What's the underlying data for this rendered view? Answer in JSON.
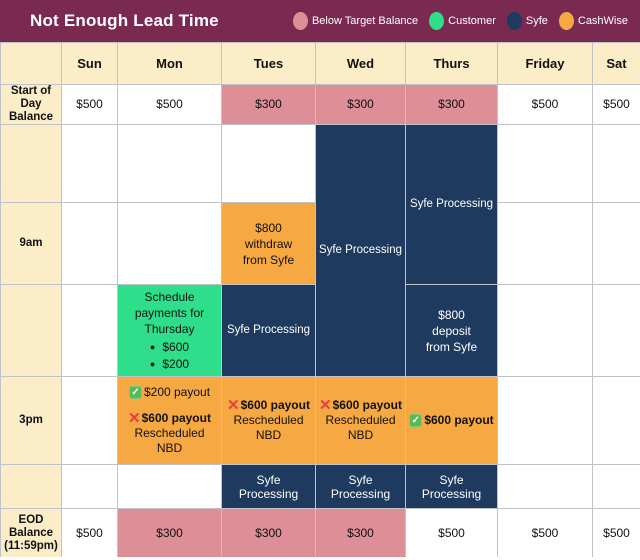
{
  "title": "Not Enough Lead Time",
  "legend": [
    {
      "name": "below-target-balance",
      "label": "Below Target Balance",
      "color": "#DD8E96"
    },
    {
      "name": "customer",
      "label": "Customer",
      "color": "#2EDE8B"
    },
    {
      "name": "syfe",
      "label": "Syfe",
      "color": "#1E3A5F"
    },
    {
      "name": "cashwise",
      "label": "CashWise",
      "color": "#F6A942"
    }
  ],
  "days": [
    "Sun",
    "Mon",
    "Tues",
    "Wed",
    "Thurs",
    "Friday",
    "Sat"
  ],
  "rows": {
    "start_of_day": {
      "label": "Start of Day Balance",
      "values": [
        "$500",
        "$500",
        "$300",
        "$300",
        "$300",
        "$500",
        "$500"
      ]
    },
    "nine_am": {
      "label": "9am"
    },
    "three_pm": {
      "label": "3pm"
    },
    "eod": {
      "label": "EOD Balance (11:59pm)",
      "values": [
        "$500",
        "$300",
        "$300",
        "$300",
        "$500",
        "$500",
        "$500"
      ]
    }
  },
  "events": {
    "syfe_processing": "Syfe Processing",
    "withdraw_tues": "$800 withdraw from Syfe",
    "deposit_thurs": "$800 deposit from Syfe",
    "schedule_mon": {
      "title": "Schedule payments for Thursday",
      "items": [
        "$600",
        "$200"
      ]
    },
    "payout_mon_success": "$200 payout",
    "payout_mon_failed": "$600 payout",
    "payout_tues_failed": "$600 payout",
    "payout_wed_failed": "$600 payout",
    "payout_thurs_success": "$600 payout",
    "rescheduled": "Rescheduled NBD"
  },
  "icons": {
    "check": "✓",
    "cross": "✕",
    "bullet": "●"
  }
}
